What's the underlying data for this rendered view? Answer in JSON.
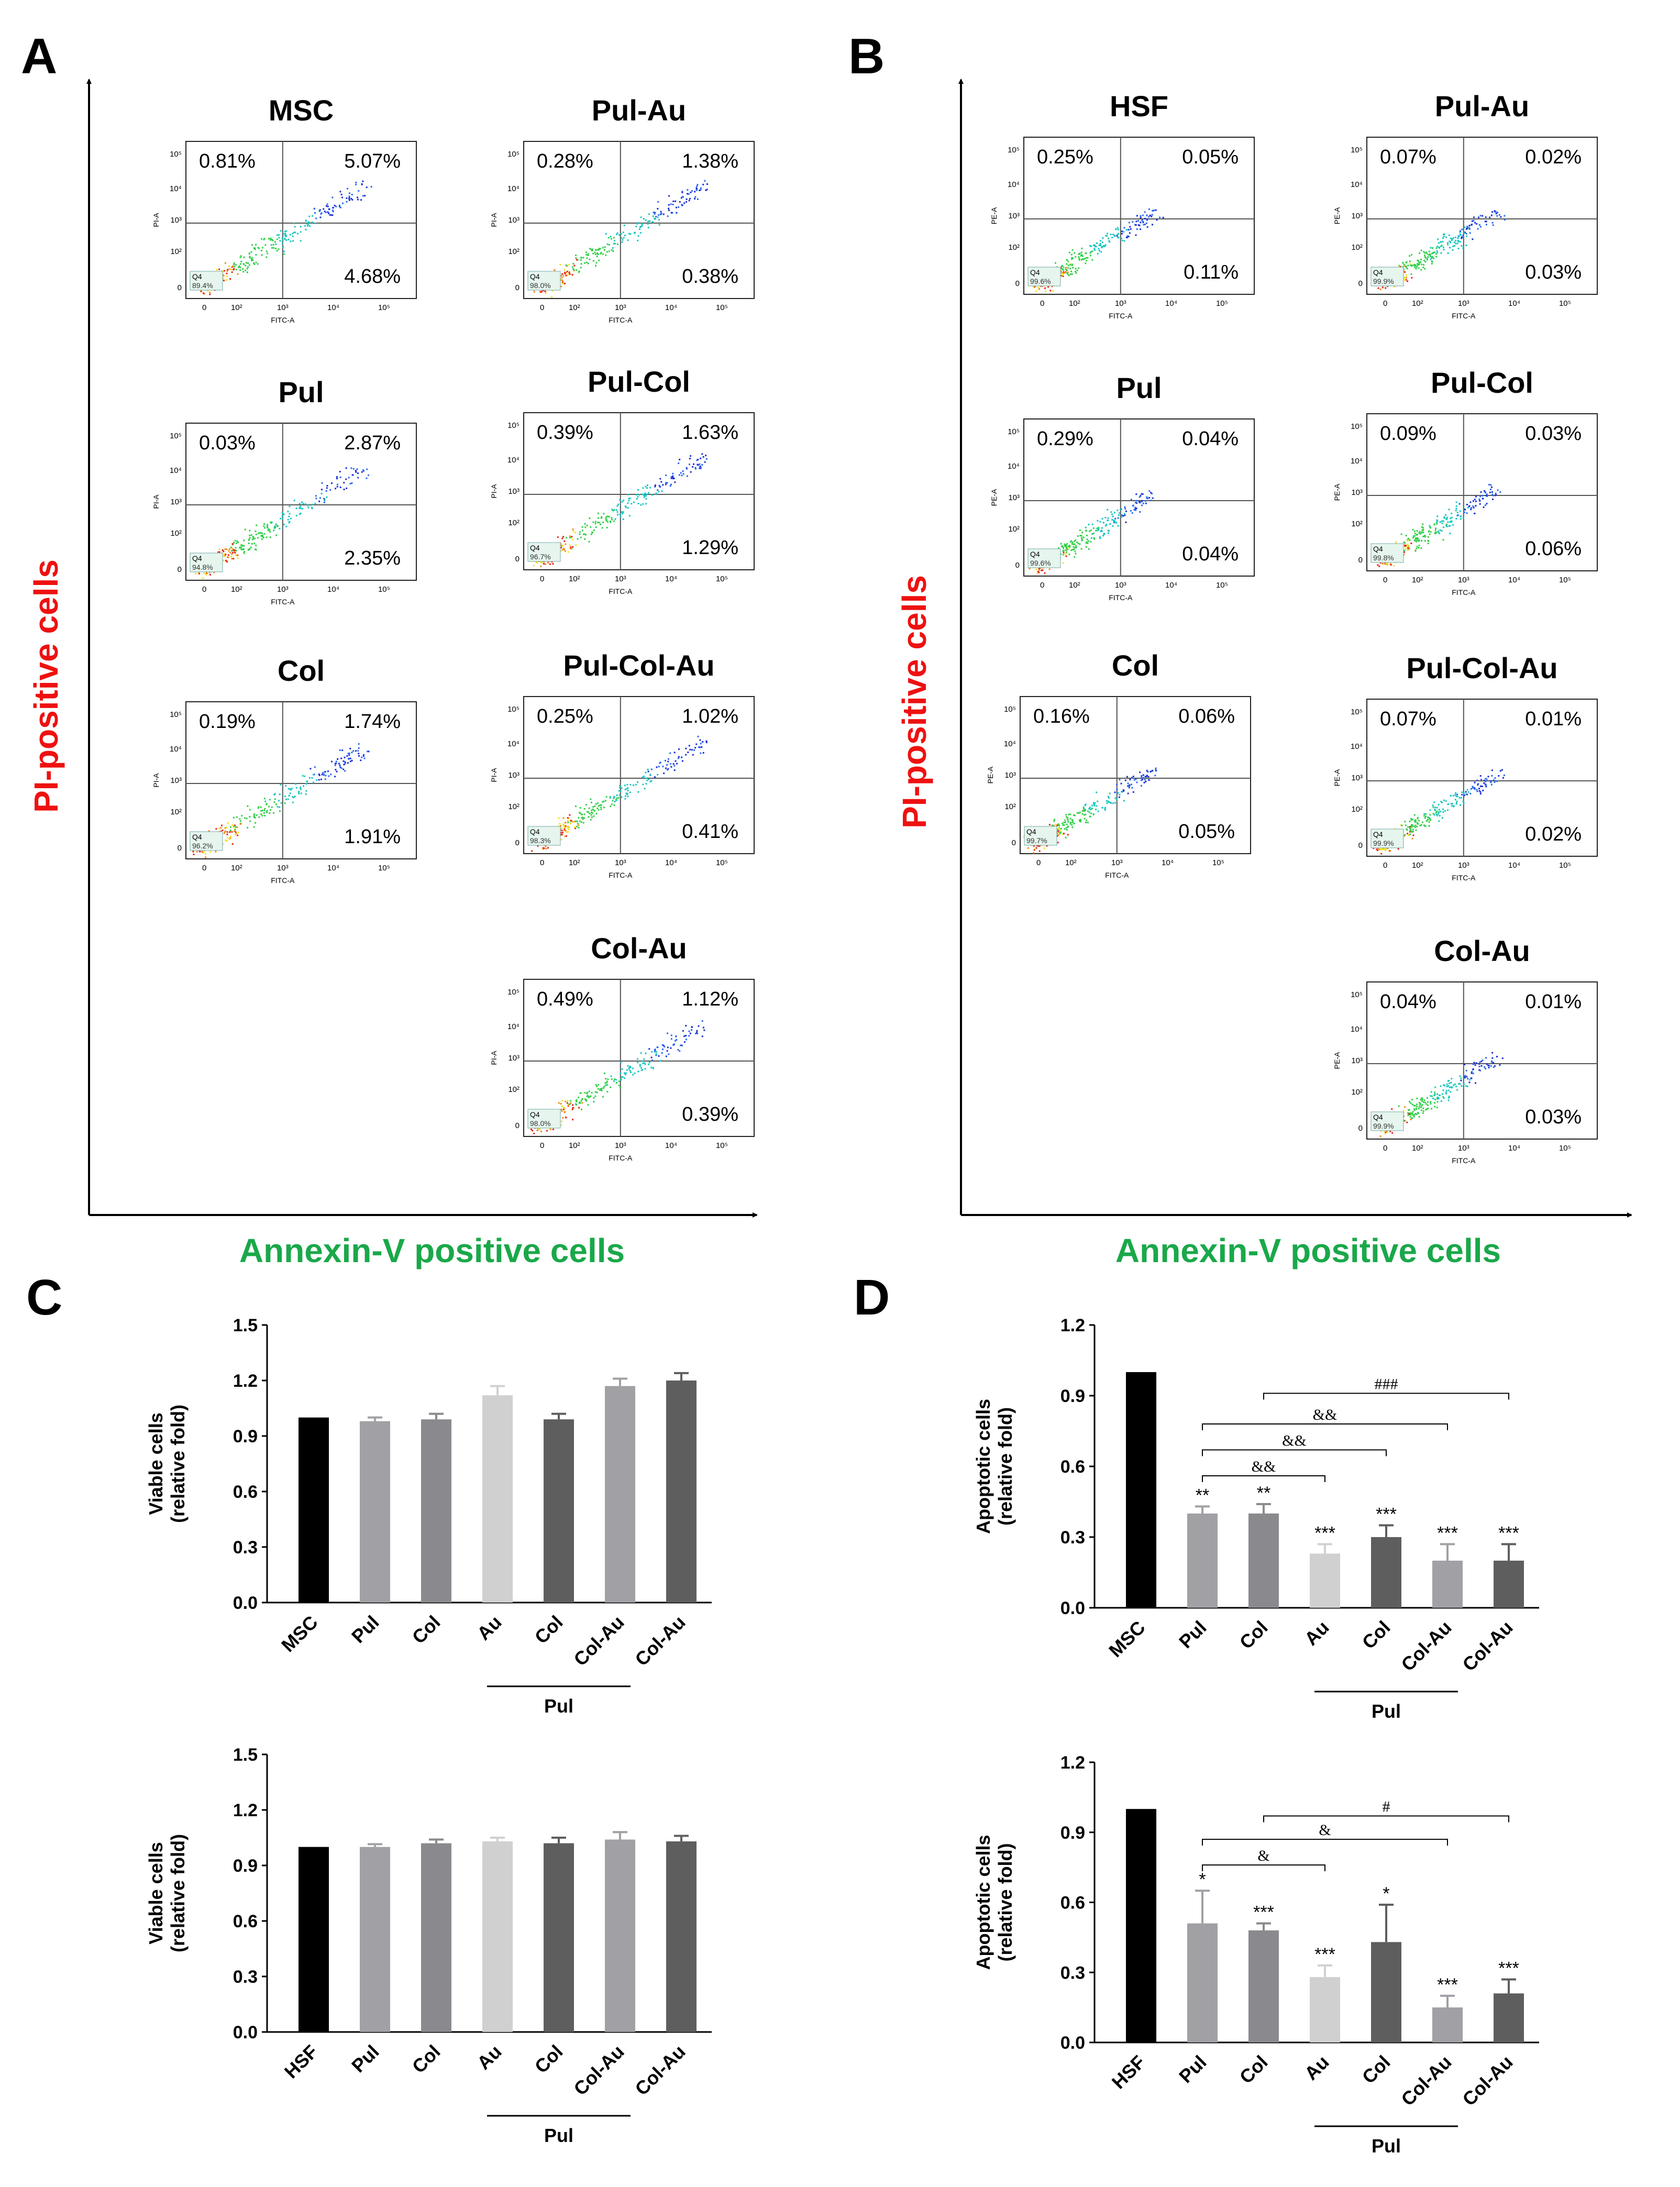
{
  "panel_letters": {
    "a": "A",
    "b": "B",
    "c": "C",
    "d": "D"
  },
  "axis_titles": {
    "pi": "PI-positive cells",
    "annexin": "Annexin-V positive cells"
  },
  "flow_axis": {
    "fitc": "FITC-A",
    "pi_a": "PI-A",
    "pe_a": "PE-A",
    "q4": "Q4"
  },
  "flow_plots": {
    "A": [
      {
        "title": "MSC",
        "ul": "0.81%",
        "ur": "5.07%",
        "lr": "4.68%",
        "q4": "89.4%"
      },
      {
        "title": "Pul-Au",
        "ul": "0.28%",
        "ur": "1.38%",
        "lr": "0.38%",
        "q4": "98.0%"
      },
      {
        "title": "Pul",
        "ul": "0.03%",
        "ur": "2.87%",
        "lr": "2.35%",
        "q4": "94.8%"
      },
      {
        "title": "Pul-Col",
        "ul": "0.39%",
        "ur": "1.63%",
        "lr": "1.29%",
        "q4": "96.7%"
      },
      {
        "title": "Col",
        "ul": "0.19%",
        "ur": "1.74%",
        "lr": "1.91%",
        "q4": "96.2%"
      },
      {
        "title": "Pul-Col-Au",
        "ul": "0.25%",
        "ur": "1.02%",
        "lr": "0.41%",
        "q4": "98.3%"
      },
      {
        "title": "Col-Au",
        "ul": "0.49%",
        "ur": "1.12%",
        "lr": "0.39%",
        "q4": "98.0%"
      }
    ],
    "B": [
      {
        "title": "HSF",
        "ul": "0.25%",
        "ur": "0.05%",
        "lr": "0.11%",
        "q4": "99.6%"
      },
      {
        "title": "Pul-Au",
        "ul": "0.07%",
        "ur": "0.02%",
        "lr": "0.03%",
        "q4": "99.9%"
      },
      {
        "title": "Pul",
        "ul": "0.29%",
        "ur": "0.04%",
        "lr": "0.04%",
        "q4": "99.6%"
      },
      {
        "title": "Pul-Col",
        "ul": "0.09%",
        "ur": "0.03%",
        "lr": "0.06%",
        "q4": "99.8%"
      },
      {
        "title": "Col",
        "ul": "0.16%",
        "ur": "0.06%",
        "lr": "0.05%",
        "q4": "99.7%"
      },
      {
        "title": "Pul-Col-Au",
        "ul": "0.07%",
        "ur": "0.01%",
        "lr": "0.02%",
        "q4": "99.9%"
      },
      {
        "title": "Col-Au",
        "ul": "0.04%",
        "ur": "0.01%",
        "lr": "0.03%",
        "q4": "99.9%"
      }
    ]
  },
  "chart_data": [
    {
      "id": "C-top",
      "type": "bar",
      "ylabel_line1": "Viable cells",
      "ylabel_line2": "(relative fold)",
      "categories": [
        "MSC",
        "Pul",
        "Col",
        "Au",
        "Col",
        "Col-Au",
        "Col-Au"
      ],
      "group_label": "Pul",
      "values": [
        1.0,
        0.98,
        0.99,
        1.12,
        0.99,
        1.17,
        1.2
      ],
      "errors": [
        0,
        0.02,
        0.03,
        0.05,
        0.03,
        0.04,
        0.04
      ],
      "colors": [
        "#000000",
        "#a0a0a5",
        "#8a8a8e",
        "#d0d0d0",
        "#5e5e5e",
        "#a0a0a5",
        "#5e5e5e"
      ],
      "ylim": [
        0,
        1.5
      ],
      "yticks": [
        "0.0",
        "0.3",
        "0.6",
        "0.9",
        "1.2",
        "1.5"
      ],
      "stars": [],
      "brackets": []
    },
    {
      "id": "C-bottom",
      "type": "bar",
      "ylabel_line1": "Viable cells",
      "ylabel_line2": "(relative fold)",
      "categories": [
        "HSF",
        "Pul",
        "Col",
        "Au",
        "Col",
        "Col-Au",
        "Col-Au"
      ],
      "group_label": "Pul",
      "values": [
        1.0,
        1.0,
        1.02,
        1.03,
        1.02,
        1.04,
        1.03
      ],
      "errors": [
        0,
        0.015,
        0.02,
        0.02,
        0.03,
        0.04,
        0.03
      ],
      "colors": [
        "#000000",
        "#a0a0a5",
        "#8a8a8e",
        "#d0d0d0",
        "#5e5e5e",
        "#a0a0a5",
        "#5e5e5e"
      ],
      "ylim": [
        0,
        1.5
      ],
      "yticks": [
        "0.0",
        "0.3",
        "0.6",
        "0.9",
        "1.2",
        "1.5"
      ],
      "stars": [],
      "brackets": []
    },
    {
      "id": "D-top",
      "type": "bar",
      "ylabel_line1": "Apoptotic cells",
      "ylabel_line2": "(relative fold)",
      "categories": [
        "MSC",
        "Pul",
        "Col",
        "Au",
        "Col",
        "Col-Au",
        "Col-Au"
      ],
      "group_label": "Pul",
      "values": [
        1.0,
        0.4,
        0.4,
        0.23,
        0.3,
        0.2,
        0.2
      ],
      "errors": [
        0,
        0.03,
        0.04,
        0.04,
        0.05,
        0.07,
        0.07
      ],
      "colors": [
        "#000000",
        "#a0a0a5",
        "#8a8a8e",
        "#d0d0d0",
        "#5e5e5e",
        "#a0a0a5",
        "#5e5e5e"
      ],
      "ylim": [
        0,
        1.2
      ],
      "yticks": [
        "0.0",
        "0.3",
        "0.6",
        "0.9",
        "1.2"
      ],
      "stars": [
        "",
        "**",
        "**",
        "***",
        "***",
        "***",
        "***"
      ],
      "brackets": [
        {
          "from": 1,
          "to": 3,
          "y": 0.56,
          "label": "&&"
        },
        {
          "from": 1,
          "to": 4,
          "y": 0.67,
          "label": "&&"
        },
        {
          "from": 1,
          "to": 5,
          "y": 0.78,
          "label": "&&"
        },
        {
          "from": 2,
          "to": 6,
          "y": 0.91,
          "label": "###"
        }
      ]
    },
    {
      "id": "D-bottom",
      "type": "bar",
      "ylabel_line1": "Apoptotic cells",
      "ylabel_line2": "(relative fold)",
      "categories": [
        "HSF",
        "Pul",
        "Col",
        "Au",
        "Col",
        "Col-Au",
        "Col-Au"
      ],
      "group_label": "Pul",
      "values": [
        1.0,
        0.51,
        0.48,
        0.28,
        0.43,
        0.15,
        0.21
      ],
      "errors": [
        0,
        0.14,
        0.03,
        0.05,
        0.16,
        0.05,
        0.06
      ],
      "colors": [
        "#000000",
        "#a0a0a5",
        "#8a8a8e",
        "#d0d0d0",
        "#5e5e5e",
        "#a0a0a5",
        "#5e5e5e"
      ],
      "ylim": [
        0,
        1.2
      ],
      "yticks": [
        "0.0",
        "0.3",
        "0.6",
        "0.9",
        "1.2"
      ],
      "stars": [
        "",
        "*",
        "***",
        "***",
        "*",
        "***",
        "***"
      ],
      "brackets": [
        {
          "from": 1,
          "to": 3,
          "y": 0.76,
          "label": "&"
        },
        {
          "from": 1,
          "to": 5,
          "y": 0.87,
          "label": "&"
        },
        {
          "from": 2,
          "to": 6,
          "y": 0.97,
          "label": "#"
        }
      ]
    }
  ]
}
